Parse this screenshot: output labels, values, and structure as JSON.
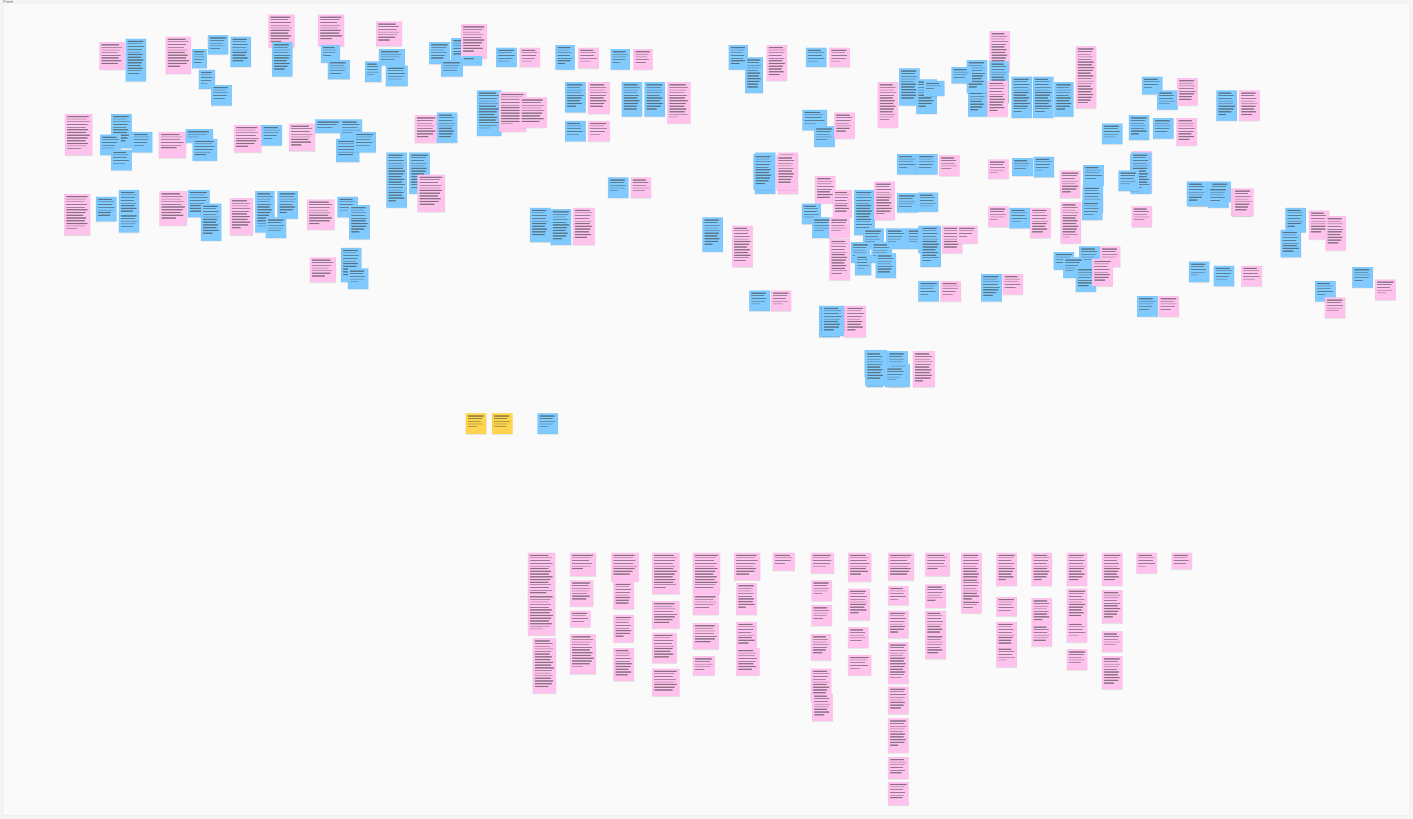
{
  "frame": {
    "title": "Frame"
  },
  "colors": {
    "pink": "#ffc2ec",
    "blue": "#80caff",
    "yellow": "#ffd44f",
    "canvas": "#fafafa"
  },
  "sticky_notes_note": "",
  "notes": []
}
